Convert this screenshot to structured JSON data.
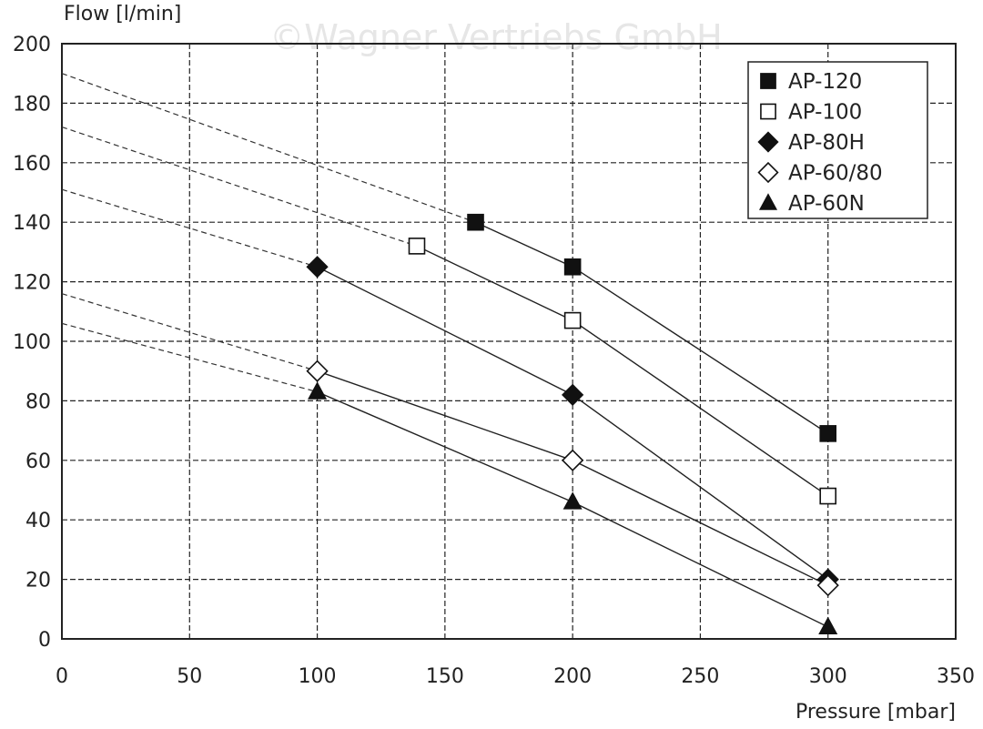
{
  "chart_data": {
    "type": "line",
    "watermark": "©Wagner Vertriebs GmbH",
    "ylabel": "Flow [l/min]",
    "xlabel": "Pressure [mbar]",
    "xlim": [
      0,
      350
    ],
    "ylim": [
      0,
      200
    ],
    "x_ticks": [
      0,
      50,
      100,
      150,
      200,
      250,
      300,
      350
    ],
    "y_ticks": [
      0,
      20,
      40,
      60,
      80,
      100,
      120,
      140,
      160,
      180,
      200
    ],
    "grid": true,
    "legend_position": "top-right",
    "series": [
      {
        "name": "AP-120",
        "marker": "square-filled",
        "points": [
          [
            162,
            140
          ],
          [
            200,
            125
          ],
          [
            300,
            69
          ]
        ],
        "extrapolation": [
          [
            0,
            190
          ],
          [
            162,
            140
          ]
        ]
      },
      {
        "name": "AP-100",
        "marker": "square-open",
        "points": [
          [
            139,
            132
          ],
          [
            200,
            107
          ],
          [
            300,
            48
          ]
        ],
        "extrapolation": [
          [
            0,
            172
          ],
          [
            139,
            132
          ]
        ]
      },
      {
        "name": "AP-80H",
        "marker": "diamond-filled",
        "points": [
          [
            100,
            125
          ],
          [
            200,
            82
          ],
          [
            300,
            20
          ]
        ],
        "extrapolation": [
          [
            0,
            151
          ],
          [
            100,
            125
          ]
        ]
      },
      {
        "name": "AP-60/80",
        "marker": "diamond-open",
        "points": [
          [
            100,
            90
          ],
          [
            200,
            60
          ],
          [
            300,
            18
          ]
        ],
        "extrapolation": [
          [
            0,
            116
          ],
          [
            100,
            90
          ]
        ]
      },
      {
        "name": "AP-60N",
        "marker": "triangle-filled",
        "points": [
          [
            100,
            83
          ],
          [
            200,
            46
          ],
          [
            300,
            4
          ]
        ],
        "extrapolation": [
          [
            0,
            106
          ],
          [
            100,
            83
          ]
        ]
      }
    ]
  }
}
